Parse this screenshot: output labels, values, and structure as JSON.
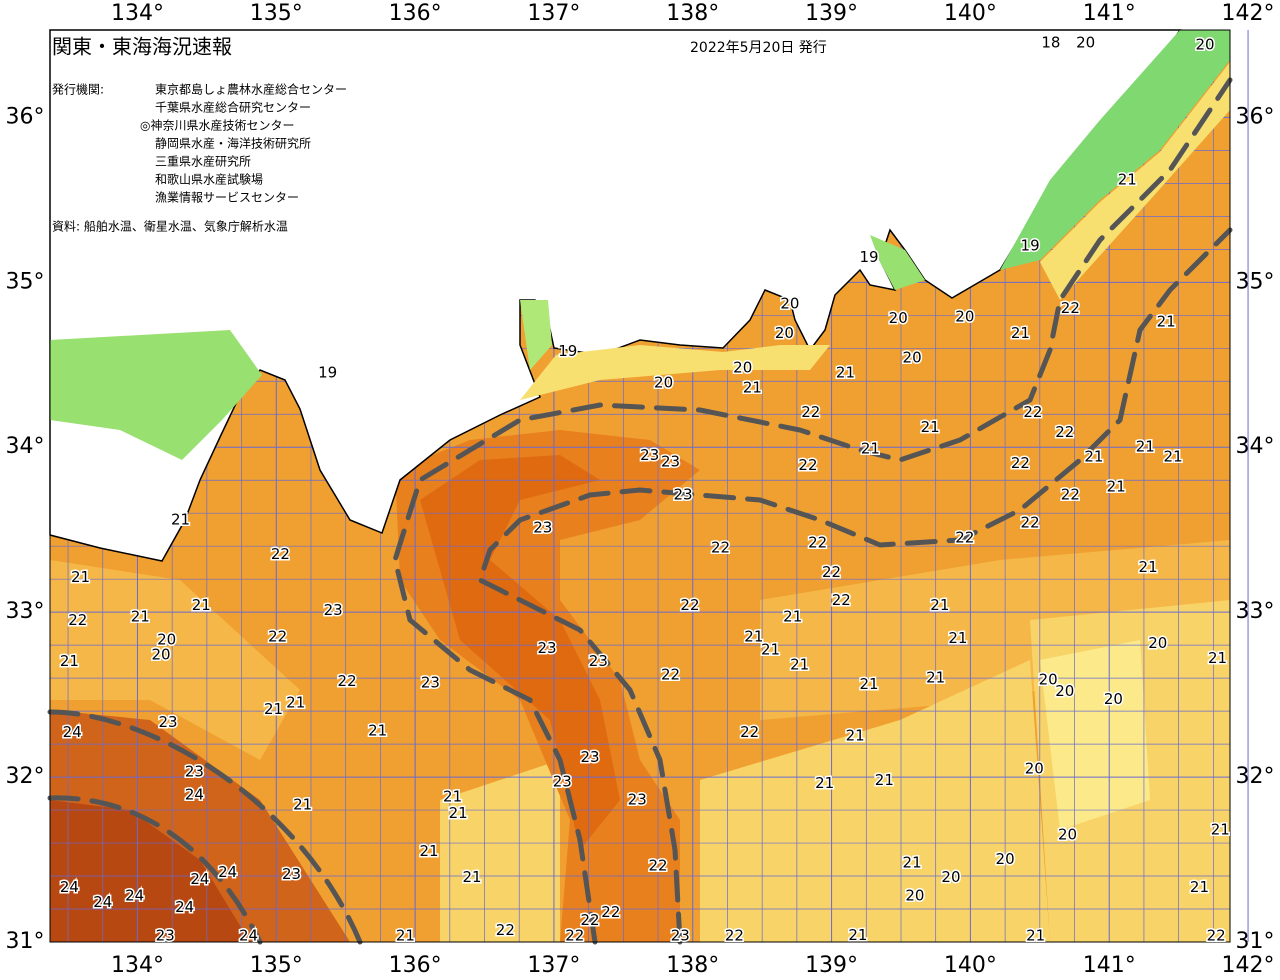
{
  "header": {
    "title": "関東・東海海況速報",
    "date": "2022年5月20日 発行",
    "agencies_label": "発行機関:",
    "agencies": [
      "東京都島しょ農林水産総合センター",
      "千葉県水産総合研究センター",
      "◎神奈川県水産技術センター",
      "静岡県水産・海洋技術研究所",
      "三重県水産研究所",
      "和歌山県水産試験場",
      "漁業情報サービスセンター"
    ],
    "source": "資料: 船舶水温、衛星水温、気象庁解析水温"
  },
  "map": {
    "xlim": [
      133.37,
      141.87
    ],
    "ylim": [
      31,
      36.53
    ],
    "xticks": [
      {
        "value": 134,
        "label": "134°"
      },
      {
        "value": 135,
        "label": "135°"
      },
      {
        "value": 136,
        "label": "136°"
      },
      {
        "value": 137,
        "label": "137°"
      },
      {
        "value": 138,
        "label": "138°"
      },
      {
        "value": 139,
        "label": "139°"
      },
      {
        "value": 140,
        "label": "140°"
      },
      {
        "value": 141,
        "label": "141°"
      },
      {
        "value": 142,
        "label": "142°"
      }
    ],
    "yticks": [
      {
        "value": 31,
        "label": "31°"
      },
      {
        "value": 32,
        "label": "32°"
      },
      {
        "value": 33,
        "label": "33°"
      },
      {
        "value": 34,
        "label": "34°"
      },
      {
        "value": 35,
        "label": "35°"
      },
      {
        "value": 36,
        "label": "36°"
      }
    ],
    "isotherm_labels": [
      {
        "lon": 140.58,
        "lat": 36.45,
        "value": 18
      },
      {
        "lon": 140.83,
        "lat": 36.45,
        "value": 20
      },
      {
        "lon": 141.69,
        "lat": 36.44,
        "value": 20
      },
      {
        "lon": 141.13,
        "lat": 35.62,
        "value": 21
      },
      {
        "lon": 140.43,
        "lat": 35.22,
        "value": 19
      },
      {
        "lon": 139.27,
        "lat": 35.15,
        "value": 19
      },
      {
        "lon": 140.72,
        "lat": 34.84,
        "value": 22
      },
      {
        "lon": 141.41,
        "lat": 34.76,
        "value": 21
      },
      {
        "lon": 140.36,
        "lat": 34.69,
        "value": 21
      },
      {
        "lon": 139.48,
        "lat": 34.78,
        "value": 20
      },
      {
        "lon": 139.96,
        "lat": 34.79,
        "value": 20
      },
      {
        "lon": 139.58,
        "lat": 34.54,
        "value": 20
      },
      {
        "lon": 138.7,
        "lat": 34.87,
        "value": 20
      },
      {
        "lon": 138.66,
        "lat": 34.69,
        "value": 20
      },
      {
        "lon": 139.1,
        "lat": 34.45,
        "value": 21
      },
      {
        "lon": 138.43,
        "lat": 34.36,
        "value": 21
      },
      {
        "lon": 138.36,
        "lat": 34.48,
        "value": 20
      },
      {
        "lon": 137.79,
        "lat": 34.39,
        "value": 20
      },
      {
        "lon": 137.1,
        "lat": 34.58,
        "value": 19
      },
      {
        "lon": 135.37,
        "lat": 34.45,
        "value": 19
      },
      {
        "lon": 138.85,
        "lat": 34.21,
        "value": 22
      },
      {
        "lon": 139.28,
        "lat": 33.99,
        "value": 21
      },
      {
        "lon": 139.71,
        "lat": 34.12,
        "value": 21
      },
      {
        "lon": 140.45,
        "lat": 34.21,
        "value": 22
      },
      {
        "lon": 140.68,
        "lat": 34.09,
        "value": 22
      },
      {
        "lon": 140.36,
        "lat": 33.9,
        "value": 22
      },
      {
        "lon": 141.26,
        "lat": 34.0,
        "value": 21
      },
      {
        "lon": 141.46,
        "lat": 33.94,
        "value": 21
      },
      {
        "lon": 140.89,
        "lat": 33.94,
        "value": 21
      },
      {
        "lon": 141.05,
        "lat": 33.76,
        "value": 21
      },
      {
        "lon": 140.72,
        "lat": 33.71,
        "value": 22
      },
      {
        "lon": 140.43,
        "lat": 33.54,
        "value": 22
      },
      {
        "lon": 139.96,
        "lat": 33.45,
        "value": 22
      },
      {
        "lon": 138.83,
        "lat": 33.89,
        "value": 22
      },
      {
        "lon": 137.69,
        "lat": 33.95,
        "value": 23
      },
      {
        "lon": 137.84,
        "lat": 33.91,
        "value": 23
      },
      {
        "lon": 137.93,
        "lat": 33.71,
        "value": 23
      },
      {
        "lon": 136.92,
        "lat": 33.51,
        "value": 23
      },
      {
        "lon": 138.2,
        "lat": 33.39,
        "value": 22
      },
      {
        "lon": 138.9,
        "lat": 33.42,
        "value": 22
      },
      {
        "lon": 139.0,
        "lat": 33.24,
        "value": 22
      },
      {
        "lon": 139.07,
        "lat": 33.07,
        "value": 22
      },
      {
        "lon": 139.78,
        "lat": 33.04,
        "value": 21
      },
      {
        "lon": 139.91,
        "lat": 32.84,
        "value": 21
      },
      {
        "lon": 141.28,
        "lat": 33.27,
        "value": 21
      },
      {
        "lon": 137.98,
        "lat": 33.04,
        "value": 22
      },
      {
        "lon": 138.44,
        "lat": 32.85,
        "value": 21
      },
      {
        "lon": 138.72,
        "lat": 32.97,
        "value": 21
      },
      {
        "lon": 138.56,
        "lat": 32.77,
        "value": 21
      },
      {
        "lon": 138.77,
        "lat": 32.68,
        "value": 21
      },
      {
        "lon": 137.84,
        "lat": 32.62,
        "value": 22
      },
      {
        "lon": 137.32,
        "lat": 32.7,
        "value": 23
      },
      {
        "lon": 136.95,
        "lat": 32.78,
        "value": 23
      },
      {
        "lon": 141.35,
        "lat": 32.81,
        "value": 20
      },
      {
        "lon": 140.56,
        "lat": 32.59,
        "value": 20
      },
      {
        "lon": 140.68,
        "lat": 32.52,
        "value": 20
      },
      {
        "lon": 141.03,
        "lat": 32.47,
        "value": 20
      },
      {
        "lon": 141.78,
        "lat": 32.72,
        "value": 21
      },
      {
        "lon": 139.75,
        "lat": 32.6,
        "value": 21
      },
      {
        "lon": 139.27,
        "lat": 32.56,
        "value": 21
      },
      {
        "lon": 139.17,
        "lat": 32.25,
        "value": 21
      },
      {
        "lon": 138.41,
        "lat": 32.27,
        "value": 22
      },
      {
        "lon": 137.26,
        "lat": 32.12,
        "value": 23
      },
      {
        "lon": 137.06,
        "lat": 31.97,
        "value": 23
      },
      {
        "lon": 137.6,
        "lat": 31.86,
        "value": 23
      },
      {
        "lon": 140.46,
        "lat": 32.05,
        "value": 20
      },
      {
        "lon": 138.95,
        "lat": 31.96,
        "value": 21
      },
      {
        "lon": 139.38,
        "lat": 31.98,
        "value": 21
      },
      {
        "lon": 140.7,
        "lat": 31.65,
        "value": 20
      },
      {
        "lon": 140.25,
        "lat": 31.5,
        "value": 20
      },
      {
        "lon": 139.58,
        "lat": 31.48,
        "value": 21
      },
      {
        "lon": 139.86,
        "lat": 31.39,
        "value": 20
      },
      {
        "lon": 139.6,
        "lat": 31.28,
        "value": 20
      },
      {
        "lon": 141.8,
        "lat": 31.68,
        "value": 21
      },
      {
        "lon": 141.65,
        "lat": 31.33,
        "value": 21
      },
      {
        "lon": 141.77,
        "lat": 31.01,
        "value": 22
      },
      {
        "lon": 140.47,
        "lat": 31.02,
        "value": 21
      },
      {
        "lon": 139.19,
        "lat": 31.04,
        "value": 21
      },
      {
        "lon": 138.3,
        "lat": 31.02,
        "value": 22
      },
      {
        "lon": 137.91,
        "lat": 31.0,
        "value": 23
      },
      {
        "lon": 137.75,
        "lat": 31.46,
        "value": 22
      },
      {
        "lon": 137.41,
        "lat": 31.18,
        "value": 22
      },
      {
        "lon": 137.26,
        "lat": 31.13,
        "value": 22
      },
      {
        "lon": 136.65,
        "lat": 31.07,
        "value": 22
      },
      {
        "lon": 136.41,
        "lat": 31.39,
        "value": 21
      },
      {
        "lon": 136.1,
        "lat": 31.55,
        "value": 21
      },
      {
        "lon": 136.27,
        "lat": 31.88,
        "value": 21
      },
      {
        "lon": 136.31,
        "lat": 31.78,
        "value": 21
      },
      {
        "lon": 135.73,
        "lat": 32.28,
        "value": 21
      },
      {
        "lon": 135.19,
        "lat": 31.83,
        "value": 21
      },
      {
        "lon": 135.11,
        "lat": 31.41,
        "value": 23
      },
      {
        "lon": 135.51,
        "lat": 32.58,
        "value": 22
      },
      {
        "lon": 136.11,
        "lat": 32.57,
        "value": 23
      },
      {
        "lon": 135.41,
        "lat": 33.01,
        "value": 23
      },
      {
        "lon": 135.01,
        "lat": 32.85,
        "value": 22
      },
      {
        "lon": 135.03,
        "lat": 33.35,
        "value": 22
      },
      {
        "lon": 135.14,
        "lat": 32.45,
        "value": 21
      },
      {
        "lon": 134.98,
        "lat": 32.41,
        "value": 21
      },
      {
        "lon": 134.46,
        "lat": 33.04,
        "value": 21
      },
      {
        "lon": 134.02,
        "lat": 32.97,
        "value": 21
      },
      {
        "lon": 134.17,
        "lat": 32.74,
        "value": 20
      },
      {
        "lon": 134.21,
        "lat": 32.83,
        "value": 20
      },
      {
        "lon": 133.59,
        "lat": 33.21,
        "value": 21
      },
      {
        "lon": 133.57,
        "lat": 32.95,
        "value": 22
      },
      {
        "lon": 133.51,
        "lat": 32.7,
        "value": 21
      },
      {
        "lon": 134.31,
        "lat": 33.56,
        "value": 21
      },
      {
        "lon": 134.22,
        "lat": 32.33,
        "value": 23
      },
      {
        "lon": 133.53,
        "lat": 32.27,
        "value": 24
      },
      {
        "lon": 134.41,
        "lat": 32.03,
        "value": 23
      },
      {
        "lon": 134.41,
        "lat": 31.89,
        "value": 24
      },
      {
        "lon": 134.45,
        "lat": 31.38,
        "value": 24
      },
      {
        "lon": 134.65,
        "lat": 31.42,
        "value": 24
      },
      {
        "lon": 134.34,
        "lat": 31.21,
        "value": 24
      },
      {
        "lon": 133.98,
        "lat": 31.28,
        "value": 24
      },
      {
        "lon": 133.75,
        "lat": 31.24,
        "value": 24
      },
      {
        "lon": 133.51,
        "lat": 31.33,
        "value": 24
      },
      {
        "lon": 134.8,
        "lat": 31.0,
        "value": 24
      },
      {
        "lon": 134.2,
        "lat": 31.0,
        "value": 23
      },
      {
        "lon": 135.93,
        "lat": 31.0,
        "value": 21
      },
      {
        "lon": 137.15,
        "lat": 31.0,
        "value": 22
      }
    ]
  }
}
